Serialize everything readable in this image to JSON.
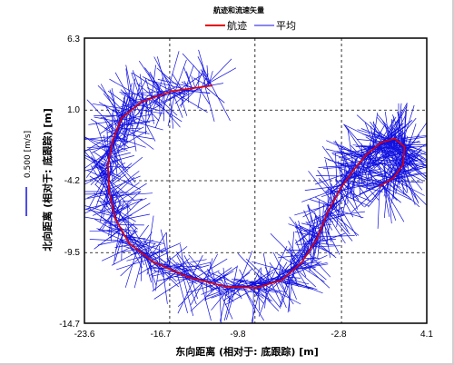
{
  "chart_data": {
    "type": "line",
    "title": "航迹和流速矢量",
    "xlabel": "东向距离 (相对于: 底跟踪) [m]",
    "ylabel": "北向距离 (相对于: 底跟踪) [m]",
    "xlim": [
      -23.6,
      4.1
    ],
    "ylim": [
      -14.7,
      6.3
    ],
    "x_ticks": [
      "-23.6",
      "-16.7",
      "-9.8",
      "-2.8",
      "4.1"
    ],
    "y_ticks": [
      "6.3",
      "1.0",
      "-4.2",
      "-9.5",
      "-14.7"
    ],
    "grid": true,
    "legend_position": "top-center",
    "scale_label": "0.500 [m/s]",
    "series": [
      {
        "name": "航迹",
        "color": "#e00000",
        "x": [
          -13.3,
          -16.5,
          -19.0,
          -20.6,
          -21.3,
          -21.7,
          -21.6,
          -21.1,
          -20.0,
          -18.0,
          -15.2,
          -12.2,
          -9.7,
          -7.6,
          -6.0,
          -4.8,
          -3.9,
          -2.9,
          -1.8,
          -0.8,
          0.4,
          1.5,
          2.3,
          2.2,
          1.4,
          0.3
        ],
        "y": [
          2.8,
          2.4,
          1.6,
          0.4,
          -1.2,
          -3.0,
          -5.0,
          -7.0,
          -8.8,
          -10.2,
          -11.3,
          -12.0,
          -12.1,
          -11.5,
          -10.2,
          -8.5,
          -6.5,
          -4.8,
          -3.4,
          -2.3,
          -1.4,
          -1.1,
          -1.7,
          -3.0,
          -4.0,
          -4.6
        ]
      },
      {
        "name": "平均",
        "color": "#1010e0",
        "x": [],
        "y": []
      }
    ]
  }
}
